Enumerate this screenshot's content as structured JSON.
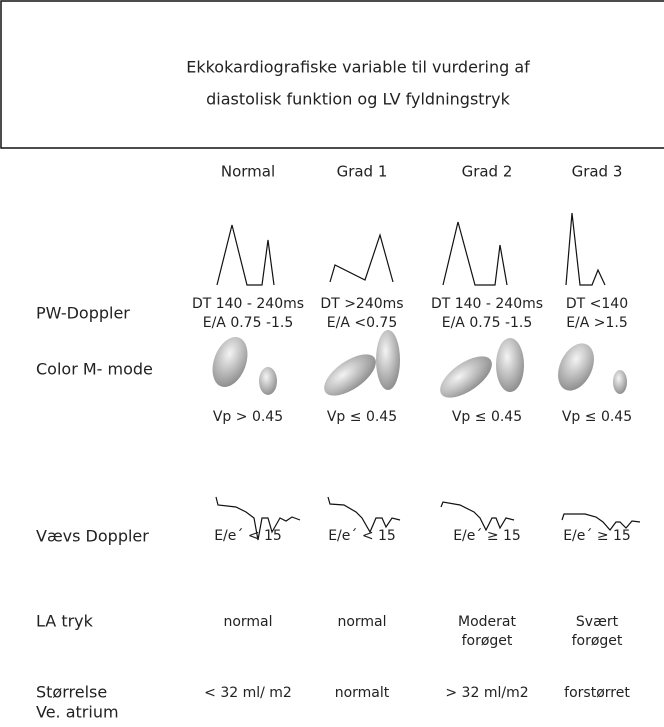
{
  "header": {
    "title_lines": [
      "Ekkokardiografiske variable til vurdering af",
      "diastolisk funktion og LV fyldningstryk"
    ]
  },
  "columns": [
    "Normal",
    "Grad  1",
    "Grad 2",
    "Grad  3"
  ],
  "rows": [
    {
      "label": [
        "PW-Doppler"
      ],
      "cells": [
        [
          "DT 140 - 240ms",
          "E/A 0.75 -1.5"
        ],
        [
          "DT >240ms",
          "E/A <0.75"
        ],
        [
          "DT 140 - 240ms",
          "E/A 0.75 -1.5"
        ],
        [
          "DT <140",
          "E/A >1.5"
        ]
      ]
    },
    {
      "label": [
        "Color M- mode"
      ],
      "cells": [
        [
          "Vp > 0.45"
        ],
        [
          "Vp ≤ 0.45"
        ],
        [
          "Vp ≤ 0.45"
        ],
        [
          "Vp ≤ 0.45"
        ]
      ]
    },
    {
      "label": [
        "Vævs Doppler"
      ],
      "cells": [
        [
          "E/e´ < 15"
        ],
        [
          "E/e´ < 15"
        ],
        [
          "E/e´ ≥ 15"
        ],
        [
          "E/e´ ≥ 15"
        ]
      ]
    },
    {
      "label": [
        "LA tryk"
      ],
      "cells": [
        [
          "normal"
        ],
        [
          "normal"
        ],
        [
          "Moderat",
          "forøget"
        ],
        [
          "Svært",
          "forøget"
        ]
      ]
    },
    {
      "label": [
        "Størrelse",
        "Ve. atrium"
      ],
      "cells": [
        [
          "< 32 ml/ m2"
        ],
        [
          "normalt"
        ],
        [
          "> 32 ml/m2"
        ],
        [
          "forstørret"
        ]
      ]
    }
  ]
}
